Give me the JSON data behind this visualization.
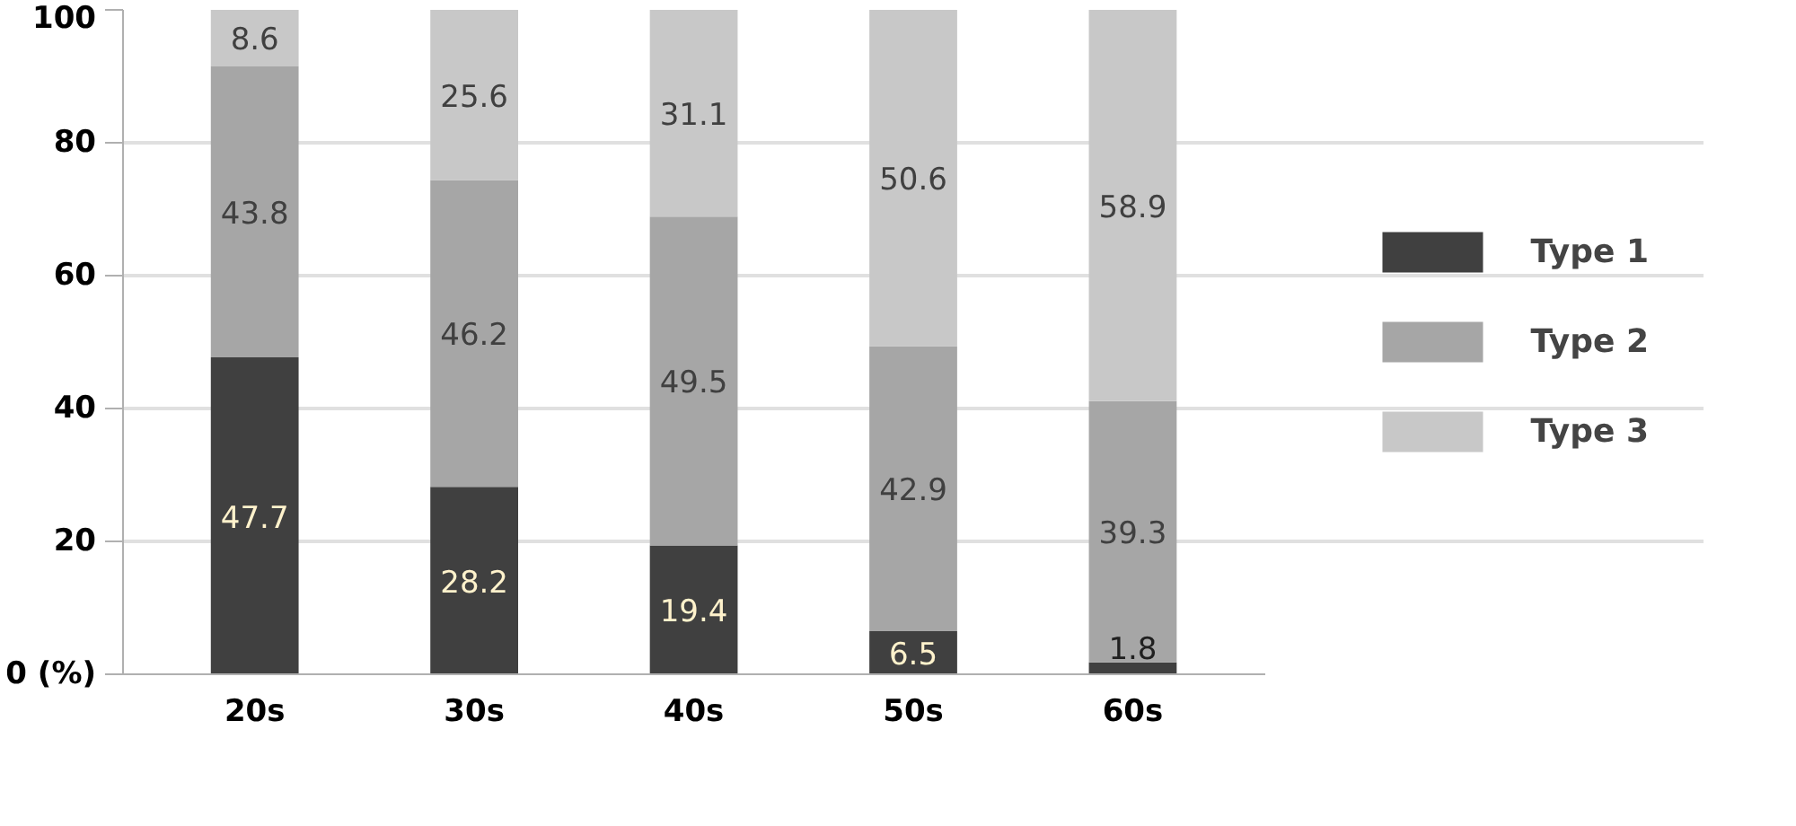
{
  "chart_data": {
    "type": "bar",
    "stacked": true,
    "categories": [
      "20s",
      "30s",
      "40s",
      "50s",
      "60s"
    ],
    "series": [
      {
        "name": "Type 1",
        "color": "#404040",
        "values": [
          47.7,
          28.2,
          19.4,
          6.5,
          1.8
        ]
      },
      {
        "name": "Type 2",
        "color": "#a6a6a6",
        "values": [
          43.8,
          46.2,
          49.5,
          42.9,
          39.3
        ]
      },
      {
        "name": "Type 3",
        "color": "#c8c8c8",
        "values": [
          8.6,
          25.6,
          31.1,
          50.6,
          58.9
        ]
      }
    ],
    "ylim": [
      0,
      100
    ],
    "yticks": [
      {
        "value": 0,
        "label": "0 (%)"
      },
      20,
      40,
      60,
      80,
      100
    ],
    "grid": "y",
    "legend": "right",
    "data_labels": true
  }
}
